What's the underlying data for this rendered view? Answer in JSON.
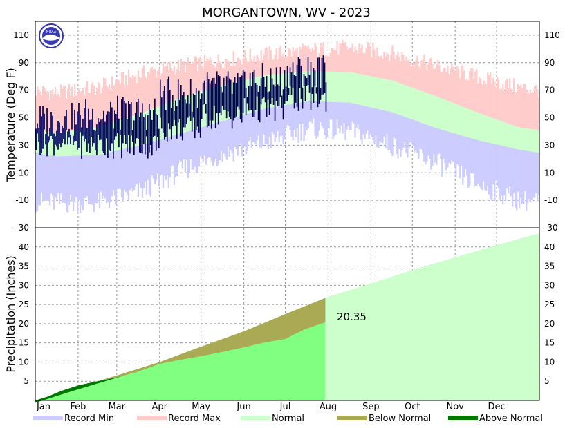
{
  "chart_data": [
    {
      "type": "area",
      "panel": "temperature",
      "title": "MORGANTOWN, WV - 2023",
      "ylabel": "Temperature (Deg F)",
      "ylim": [
        -30,
        120
      ],
      "yticks": [
        -30,
        -10,
        10,
        30,
        50,
        70,
        90,
        110
      ],
      "grid": true,
      "months": [
        "Jan",
        "Feb",
        "Mar",
        "Apr",
        "May",
        "Jun",
        "Jul",
        "Aug",
        "Sep",
        "Oct",
        "Nov",
        "Dec"
      ],
      "normal_high": {
        "months": [
          "Jan",
          "Feb",
          "Mar",
          "Apr",
          "May",
          "Jun",
          "Jul",
          "Aug",
          "Sep",
          "Oct",
          "Nov",
          "Dec"
        ],
        "values": [
          39,
          43,
          53,
          65,
          74,
          81,
          84,
          83,
          77,
          66,
          54,
          43
        ]
      },
      "normal_low": {
        "months": [
          "Jan",
          "Feb",
          "Mar",
          "Apr",
          "May",
          "Jun",
          "Jul",
          "Aug",
          "Sep",
          "Oct",
          "Nov",
          "Dec"
        ],
        "values": [
          22,
          23,
          30,
          39,
          48,
          57,
          62,
          61,
          54,
          43,
          34,
          27
        ]
      },
      "record_high": {
        "months": [
          "Jan",
          "Feb",
          "Mar",
          "Apr",
          "May",
          "Jun",
          "Jul",
          "Aug",
          "Sep",
          "Oct",
          "Nov",
          "Dec"
        ],
        "values": [
          68,
          72,
          82,
          88,
          92,
          96,
          99,
          101,
          97,
          88,
          80,
          72
        ]
      },
      "record_low": {
        "months": [
          "Jan",
          "Feb",
          "Mar",
          "Apr",
          "May",
          "Jun",
          "Jul",
          "Aug",
          "Sep",
          "Oct",
          "Nov",
          "Dec"
        ],
        "values": [
          -12,
          -12,
          -4,
          12,
          24,
          32,
          42,
          40,
          30,
          18,
          2,
          -10
        ]
      },
      "observed_daily": {
        "start": "2023-01-01",
        "end": "2023-07-30",
        "monthly_mean_high": {
          "Jan": 48,
          "Feb": 52,
          "Mar": 53,
          "Apr": 67,
          "May": 72,
          "Jun": 77,
          "Jul": 84
        },
        "monthly_mean_low": {
          "Jan": 32,
          "Feb": 30,
          "Mar": 30,
          "Apr": 42,
          "May": 51,
          "Jun": 56,
          "Jul": 64
        }
      }
    },
    {
      "type": "area",
      "panel": "precipitation",
      "ylabel": "Precipitation (Inches)",
      "ylim": [
        0,
        45
      ],
      "yticks": [
        5,
        10,
        15,
        20,
        25,
        30,
        35,
        40
      ],
      "grid": true,
      "xticks": [
        "Jan",
        "Feb",
        "Mar",
        "Apr",
        "May",
        "Jun",
        "Jul",
        "Aug",
        "Sep",
        "Oct",
        "Nov",
        "Dec"
      ],
      "normal_cumulative": {
        "dates": [
          "2023-01-01",
          "2023-02-01",
          "2023-03-01",
          "2023-04-01",
          "2023-05-01",
          "2023-06-01",
          "2023-07-01",
          "2023-08-01",
          "2023-09-01",
          "2023-10-01",
          "2023-11-01",
          "2023-12-01",
          "2023-12-31"
        ],
        "values": [
          0,
          3.5,
          6.5,
          10,
          14,
          18,
          22.5,
          27,
          30.5,
          34,
          37.3,
          40.5,
          43.5
        ]
      },
      "observed_cumulative": {
        "dates": [
          "2023-01-01",
          "2023-01-10",
          "2023-01-20",
          "2023-02-01",
          "2023-02-15",
          "2023-03-01",
          "2023-03-15",
          "2023-04-01",
          "2023-04-15",
          "2023-05-01",
          "2023-05-15",
          "2023-06-01",
          "2023-06-15",
          "2023-07-01",
          "2023-07-15",
          "2023-07-30"
        ],
        "values": [
          0,
          1.0,
          2.5,
          3.9,
          5.0,
          6.0,
          7.3,
          9.5,
          10.5,
          11.5,
          12.5,
          13.8,
          15.0,
          16.0,
          18.5,
          20.35
        ]
      },
      "annotation": "20.35",
      "legend": {
        "placement": "bottom",
        "items": [
          {
            "label": "Record Min",
            "color": "#ccccff"
          },
          {
            "label": "Record Max",
            "color": "#ffcccc"
          },
          {
            "label": "Normal",
            "color": "#ccffcc"
          },
          {
            "label": "Below Normal",
            "color": "#aaaa55"
          },
          {
            "label": "Above Normal",
            "color": "#007700"
          }
        ]
      }
    }
  ],
  "colors": {
    "record_min": "#ccccff",
    "record_max": "#ffcccc",
    "normal": "#ccffcc",
    "observed_bars": "#000066",
    "observed_precip": "#80ff80",
    "below_normal": "#aaaa55",
    "above_normal": "#007700"
  },
  "logo_text": "NOAA"
}
